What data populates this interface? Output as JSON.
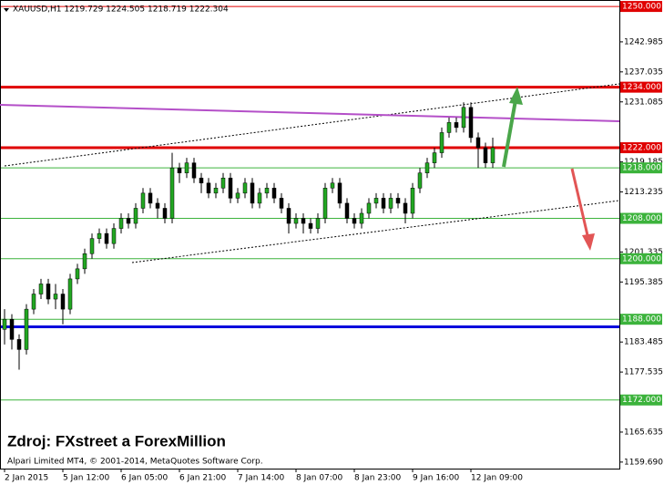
{
  "chart_data": {
    "type": "candlestick",
    "title": "XAUUSD,H1  1219.729 1224.505 1218.719 1222.304",
    "source": "Zdroj: FXstreet a ForexMillion",
    "footer": "Alpari Limited MT4, © 2001-2014, MetaQuotes Software Corp.",
    "up_color": "#22a722",
    "down_color": "#000000",
    "ylim": [
      1158.4,
      1251.1
    ],
    "yticks": [
      1242.985,
      1237.035,
      1231.085,
      1219.185,
      1213.235,
      1201.335,
      1195.385,
      1183.485,
      1177.535,
      1165.635,
      {
        "value": 1159.69,
        "label": "1159.690"
      }
    ],
    "levels": [
      {
        "value": 1250,
        "label": "1250.000",
        "color": "#e00000",
        "width": 1
      },
      {
        "value": 1234,
        "label": "1234.000",
        "color": "#e00000",
        "width": 3
      },
      {
        "value": 1222,
        "label": "1222.000",
        "color": "#e00000",
        "width": 3
      },
      {
        "value": 1218,
        "label": "1218.000",
        "color": "#3cb33c",
        "width": 1
      },
      {
        "value": 1208,
        "label": "1208.000",
        "color": "#3cb33c",
        "width": 1
      },
      {
        "value": 1200,
        "label": "1200.000",
        "color": "#3cb33c",
        "width": 1
      },
      {
        "value": 1188,
        "label": "1188.000",
        "color": "#3cb33c",
        "width": 1
      },
      {
        "value": 1186.5,
        "color": "#0000dd",
        "width": 3
      },
      {
        "value": 1172,
        "label": "1172.000",
        "color": "#3cb33c",
        "width": 1
      }
    ],
    "categories": [
      "2 Jan 2015",
      null,
      null,
      null,
      null,
      null,
      null,
      null,
      "5 Jan 12:00",
      null,
      null,
      null,
      null,
      null,
      null,
      null,
      "6 Jan 05:00",
      null,
      null,
      null,
      null,
      null,
      null,
      null,
      "6 Jan 21:00",
      null,
      null,
      null,
      null,
      null,
      null,
      null,
      "7 Jan 14:00",
      null,
      null,
      null,
      null,
      null,
      null,
      null,
      "8 Jan 07:00",
      null,
      null,
      null,
      null,
      null,
      null,
      null,
      "8 Jan 23:00",
      null,
      null,
      null,
      null,
      null,
      null,
      null,
      "9 Jan 16:00",
      null,
      null,
      null,
      null,
      null,
      null,
      null,
      "12 Jan 09:00",
      null,
      null,
      null
    ],
    "open": [
      1186,
      1188,
      1184,
      1182,
      1190,
      1193,
      1195,
      1192,
      1193,
      1190,
      1196,
      1198,
      1201,
      1204,
      1205,
      1203,
      1206,
      1208,
      1207,
      1210,
      1213,
      1211,
      1210,
      1208,
      1218,
      1217,
      1219,
      1216,
      1215,
      1213,
      1214,
      1216,
      1212,
      1213,
      1215,
      1211,
      1213,
      1214,
      1212,
      1210,
      1207,
      1208,
      1207,
      1206,
      1208,
      1214,
      1215,
      1211,
      1208,
      1207,
      1209,
      1211,
      1212,
      1210,
      1212,
      1211,
      1209,
      1214,
      1217,
      1219,
      1221,
      1225,
      1227,
      1226,
      1230,
      1224,
      1222,
      1219
    ],
    "high": [
      1190,
      1189,
      1185,
      1191,
      1194,
      1196,
      1196,
      1195,
      1194,
      1197,
      1199,
      1202,
      1205,
      1206,
      1206,
      1207,
      1209,
      1209,
      1211,
      1214,
      1214,
      1212,
      1211,
      1221,
      1219,
      1220,
      1220,
      1217,
      1216,
      1215,
      1217,
      1217,
      1214,
      1216,
      1216,
      1214,
      1215,
      1215,
      1213,
      1211,
      1209,
      1209,
      1208,
      1209,
      1215,
      1216,
      1216,
      1212,
      1209,
      1210,
      1212,
      1213,
      1213,
      1213,
      1213,
      1212,
      1215,
      1218,
      1220,
      1222,
      1226,
      1228,
      1228,
      1231,
      1231,
      1225,
      1223,
      1224
    ],
    "low": [
      1183,
      1182,
      1178,
      1181,
      1189,
      1192,
      1191,
      1190,
      1187,
      1189,
      1195,
      1197,
      1200,
      1203,
      1202,
      1202,
      1205,
      1206,
      1206,
      1209,
      1210,
      1208,
      1207,
      1207,
      1215,
      1216,
      1215,
      1213,
      1212,
      1212,
      1213,
      1211,
      1211,
      1212,
      1210,
      1210,
      1212,
      1211,
      1209,
      1205,
      1206,
      1205,
      1205,
      1205,
      1207,
      1213,
      1210,
      1207,
      1206,
      1206,
      1208,
      1210,
      1209,
      1209,
      1210,
      1207,
      1208,
      1213,
      1216,
      1218,
      1220,
      1224,
      1225,
      1225,
      1223,
      1218,
      1218,
      1218
    ],
    "close": [
      1188,
      1184,
      1182,
      1190,
      1193,
      1195,
      1192,
      1193,
      1190,
      1196,
      1198,
      1201,
      1204,
      1205,
      1203,
      1206,
      1208,
      1207,
      1210,
      1213,
      1211,
      1210,
      1208,
      1218,
      1217,
      1219,
      1216,
      1215,
      1213,
      1214,
      1216,
      1212,
      1213,
      1215,
      1211,
      1213,
      1214,
      1212,
      1210,
      1207,
      1208,
      1207,
      1206,
      1208,
      1214,
      1215,
      1211,
      1208,
      1207,
      1209,
      1211,
      1212,
      1210,
      1212,
      1211,
      1209,
      1214,
      1217,
      1219,
      1221,
      1225,
      1227,
      1226,
      1230,
      1224,
      1222,
      1219,
      1222
    ]
  }
}
